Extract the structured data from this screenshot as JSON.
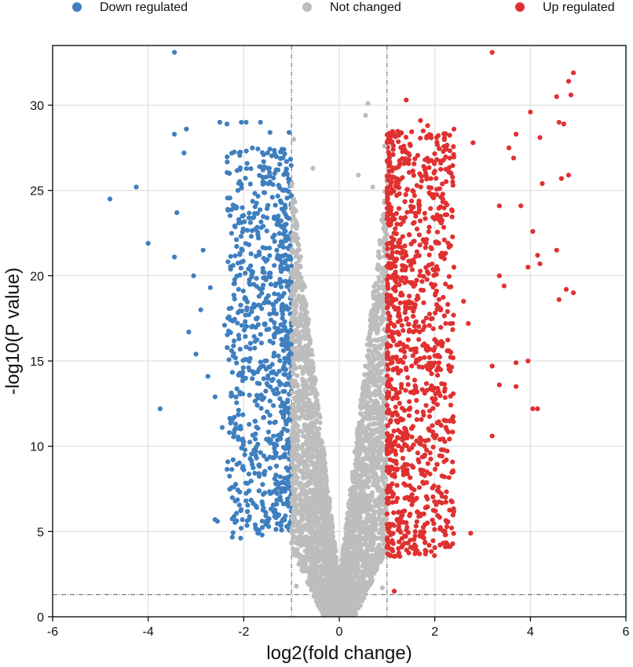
{
  "chart_data": {
    "type": "scatter",
    "title": "",
    "xlabel": "log2(fold change)",
    "ylabel": "-log10(P value)",
    "xlim": [
      -6,
      6
    ],
    "ylim": [
      0,
      33.5
    ],
    "x_ticks": [
      -6,
      -4,
      -2,
      0,
      2,
      4,
      6
    ],
    "y_ticks": [
      0,
      5,
      10,
      15,
      20,
      25,
      30
    ],
    "x_tick_labels": [
      "-6",
      "-4",
      "-2",
      "0",
      "2",
      "4",
      "6"
    ],
    "y_tick_labels": [
      "0",
      "5",
      "10",
      "15",
      "20",
      "25",
      "30"
    ],
    "grid": true,
    "legend_position": "top",
    "thresholds": {
      "log2fc": [
        -1,
        1
      ],
      "neg_log10_p": 1.3
    },
    "series": [
      {
        "name": "Down regulated",
        "color": "#3f7fbf",
        "points": [
          [
            -3.45,
            33.1
          ],
          [
            -4.8,
            24.5
          ],
          [
            -4.25,
            25.2
          ],
          [
            -4.0,
            21.9
          ],
          [
            -3.75,
            12.2
          ],
          [
            -3.45,
            28.3
          ],
          [
            -3.2,
            28.6
          ],
          [
            -3.25,
            27.2
          ],
          [
            -3.4,
            23.7
          ],
          [
            -3.45,
            21.1
          ],
          [
            -3.05,
            20.0
          ],
          [
            -3.15,
            16.7
          ],
          [
            -3.0,
            15.4
          ],
          [
            -2.9,
            18.0
          ],
          [
            -2.75,
            14.1
          ],
          [
            -2.6,
            12.9
          ],
          [
            -2.6,
            5.7
          ],
          [
            -2.55,
            5.6
          ],
          [
            -2.5,
            29.0
          ],
          [
            -2.35,
            28.9
          ],
          [
            -2.05,
            29.0
          ],
          [
            -1.95,
            29.0
          ],
          [
            -1.65,
            29.0
          ],
          [
            -1.45,
            28.4
          ],
          [
            -1.05,
            28.4
          ],
          [
            -1.5,
            27.2
          ],
          [
            -2.2,
            24.0
          ],
          [
            -1.95,
            6.8
          ],
          [
            -1.75,
            5.2
          ],
          [
            -2.3,
            10.8
          ],
          [
            -2.2,
            11.7
          ],
          [
            -2.45,
            11.1
          ],
          [
            -2.85,
            21.5
          ],
          [
            -2.7,
            19.3
          ],
          [
            -2.4,
            17.1
          ],
          [
            -2.1,
            16.3
          ]
        ],
        "fill_region": {
          "x": [
            -2.3,
            -1.0
          ],
          "y": [
            4.5,
            27.5
          ],
          "count": 900
        }
      },
      {
        "name": "Not changed",
        "color": "#bdbdbd",
        "points": [
          [
            0.6,
            30.1
          ],
          [
            0.55,
            29.4
          ],
          [
            -0.95,
            28.0
          ],
          [
            0.95,
            27.6
          ],
          [
            -0.55,
            26.3
          ],
          [
            0.4,
            25.9
          ],
          [
            0.7,
            25.2
          ],
          [
            -0.9,
            1.8
          ],
          [
            0.9,
            1.7
          ]
        ],
        "fill_region": {
          "x": [
            -1.0,
            1.0
          ],
          "y": [
            0.1,
            26.0
          ],
          "count": 3600
        }
      },
      {
        "name": "Up regulated",
        "color": "#e03131",
        "points": [
          [
            3.2,
            33.1
          ],
          [
            4.9,
            31.9
          ],
          [
            4.8,
            31.4
          ],
          [
            4.55,
            30.5
          ],
          [
            4.85,
            30.6
          ],
          [
            4.0,
            29.6
          ],
          [
            4.6,
            29.0
          ],
          [
            4.7,
            28.9
          ],
          [
            3.7,
            28.3
          ],
          [
            4.2,
            28.1
          ],
          [
            3.55,
            27.5
          ],
          [
            3.65,
            26.9
          ],
          [
            4.8,
            25.9
          ],
          [
            4.65,
            25.7
          ],
          [
            4.25,
            25.4
          ],
          [
            3.8,
            24.1
          ],
          [
            3.35,
            24.1
          ],
          [
            4.55,
            21.5
          ],
          [
            4.15,
            21.2
          ],
          [
            4.05,
            22.6
          ],
          [
            4.2,
            20.7
          ],
          [
            3.95,
            20.5
          ],
          [
            3.35,
            20.0
          ],
          [
            3.45,
            19.4
          ],
          [
            4.75,
            19.2
          ],
          [
            4.9,
            19.0
          ],
          [
            4.6,
            18.6
          ],
          [
            3.7,
            14.9
          ],
          [
            3.95,
            15.0
          ],
          [
            3.2,
            14.7
          ],
          [
            3.35,
            13.6
          ],
          [
            3.7,
            13.5
          ],
          [
            4.05,
            12.2
          ],
          [
            4.15,
            12.2
          ],
          [
            3.2,
            10.6
          ],
          [
            2.75,
            4.9
          ],
          [
            1.8,
            3.9
          ],
          [
            1.15,
            1.5
          ],
          [
            1.4,
            30.3
          ],
          [
            1.7,
            29.1
          ],
          [
            1.85,
            28.8
          ],
          [
            2.4,
            28.6
          ],
          [
            2.8,
            27.8
          ],
          [
            2.1,
            25.1
          ],
          [
            2.2,
            22.1
          ],
          [
            2.4,
            20.5
          ],
          [
            2.6,
            18.5
          ],
          [
            2.7,
            17.2
          ]
        ],
        "fill_region": {
          "x": [
            1.0,
            2.4
          ],
          "y": [
            3.5,
            28.5
          ],
          "count": 1100
        }
      }
    ]
  },
  "legend": [
    {
      "label": "Down regulated",
      "color": "#3f7fbf"
    },
    {
      "label": "Not changed",
      "color": "#bdbdbd"
    },
    {
      "label": "Up regulated",
      "color": "#e03131"
    }
  ]
}
